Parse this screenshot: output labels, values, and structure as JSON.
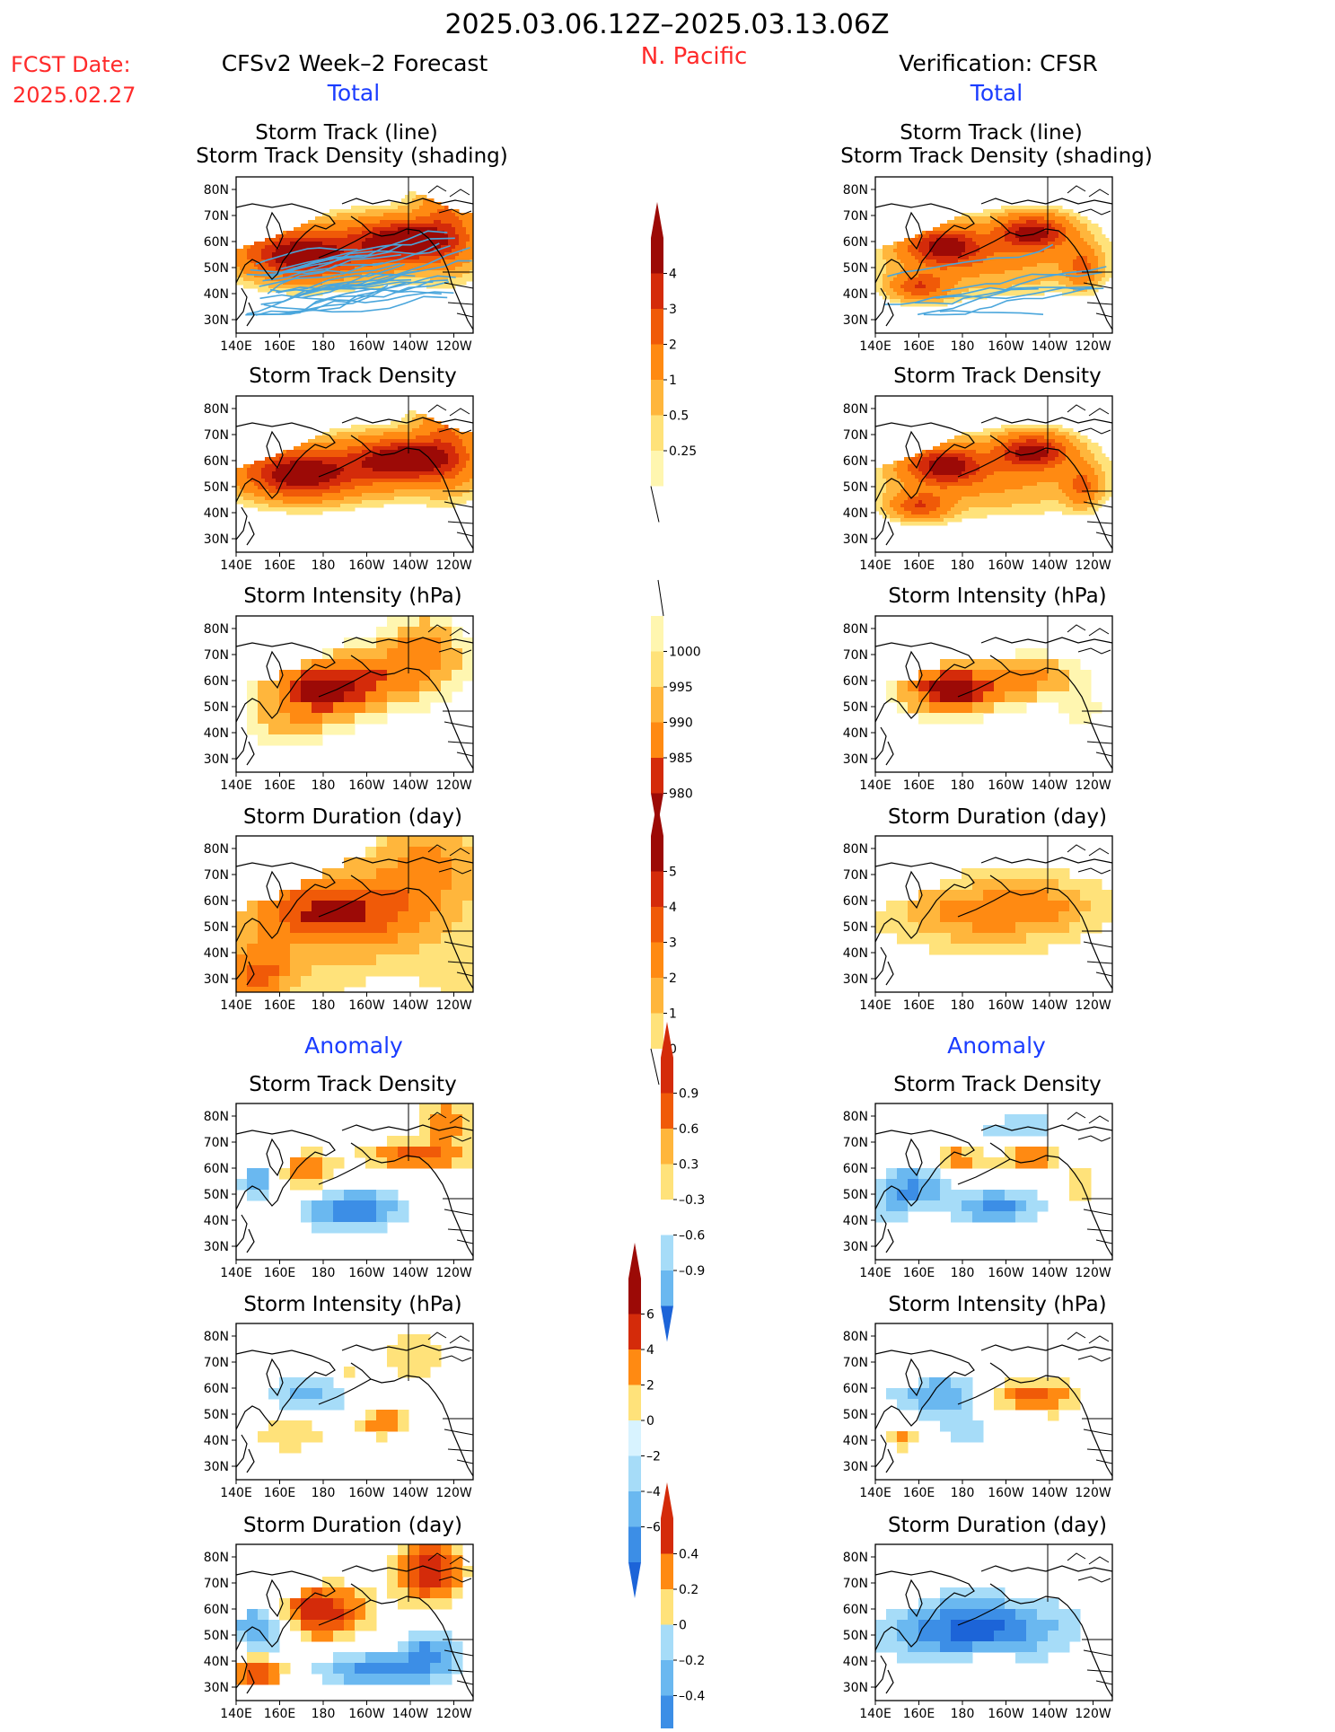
{
  "header": {
    "date_range": "2025.03.06.12Z–2025.03.13.06Z",
    "region": "N. Pacific",
    "fcst_label": "FCST Date:",
    "fcst_date": "2025.02.27",
    "left_title": "CFSv2 Week–2 Forecast",
    "right_title": "Verification: CFSR",
    "total_label": "Total",
    "anomaly_label": "Anomaly"
  },
  "axes": {
    "lat_labels": [
      "80N",
      "70N",
      "60N",
      "50N",
      "40N",
      "30N"
    ],
    "lon_labels": [
      "140E",
      "160E",
      "180",
      "160W",
      "140W",
      "120W"
    ]
  },
  "panel_titles": {
    "track_line": "Storm Track (line)",
    "track_shading": "Storm Track Density (shading)",
    "density": "Storm Track Density",
    "intensity": "Storm Intensity (hPa)",
    "duration": "Storm Duration (day)"
  },
  "colorbars": {
    "total_density": [
      "4",
      "3",
      "2",
      "1",
      "0.5",
      "0.25"
    ],
    "total_intensity": [
      "1000",
      "995",
      "990",
      "985",
      "980"
    ],
    "total_duration": [
      "5",
      "4",
      "3",
      "2",
      "1",
      "0"
    ],
    "anom_density": [
      "0.9",
      "0.6",
      "0.3",
      "–0.3",
      "–0.6",
      "–0.9"
    ],
    "anom_intensity": [
      "6",
      "4",
      "2",
      "0",
      "–2",
      "–4",
      "–6"
    ],
    "anom_duration": [
      "0.4",
      "0.2",
      "0",
      "–0.2",
      "–0.4"
    ]
  },
  "colors": {
    "warm": [
      "#fff6b0",
      "#ffe27a",
      "#ffb63c",
      "#ff8a12",
      "#f05a08",
      "#d42b0a",
      "#9c0a06"
    ],
    "cool": [
      "#d8f3ff",
      "#a6dcf8",
      "#6ab8f0",
      "#3c8ee6",
      "#1c64d8"
    ],
    "track_line": "#4aa6dc",
    "red_text": "#ff2a2a",
    "blue_text": "#1a3cff"
  }
}
